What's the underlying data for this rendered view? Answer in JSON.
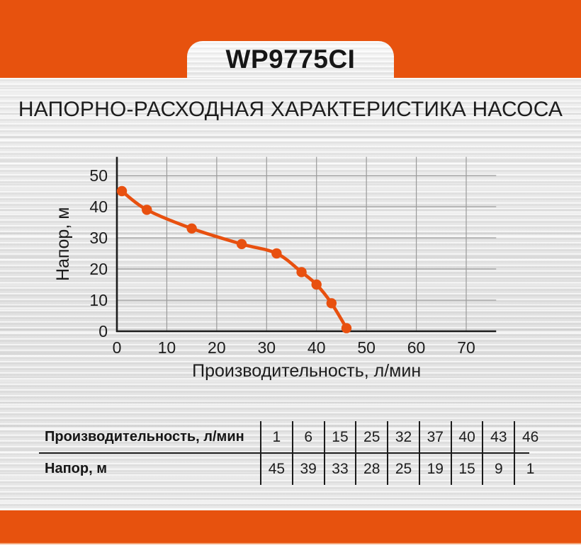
{
  "header": {
    "model": "WP9775CI"
  },
  "title": "НАПОРНО-РАСХОДНАЯ ХАРАКТЕРИСТИКА НАСОСА",
  "colors": {
    "accent_orange": "#e7520e",
    "curve_orange": "#e8500f",
    "grid_gray": "#9b9b9b",
    "text_black": "#1d1d1d"
  },
  "chart_data": {
    "type": "line",
    "title": "",
    "xlabel": "Производительность, л/мин",
    "ylabel": "Напор, м",
    "x": [
      1,
      6,
      15,
      25,
      32,
      37,
      40,
      43,
      46
    ],
    "y": [
      45,
      39,
      33,
      28,
      25,
      19,
      15,
      9,
      1
    ],
    "xlim": [
      0,
      76
    ],
    "ylim": [
      0,
      56
    ],
    "xticks": [
      0,
      10,
      20,
      30,
      40,
      50,
      60,
      70
    ],
    "yticks": [
      0,
      10,
      20,
      30,
      40,
      50
    ],
    "grid": true,
    "legend": false,
    "line_color": "#e8500f",
    "marker": "circle"
  },
  "table": {
    "rows": [
      {
        "label": "Производительность, л/мин",
        "values": [
          "1",
          "6",
          "15",
          "25",
          "32",
          "37",
          "40",
          "43",
          "46"
        ]
      },
      {
        "label": "Напор, м",
        "values": [
          "45",
          "39",
          "33",
          "28",
          "25",
          "19",
          "15",
          "9",
          "1"
        ]
      }
    ]
  }
}
